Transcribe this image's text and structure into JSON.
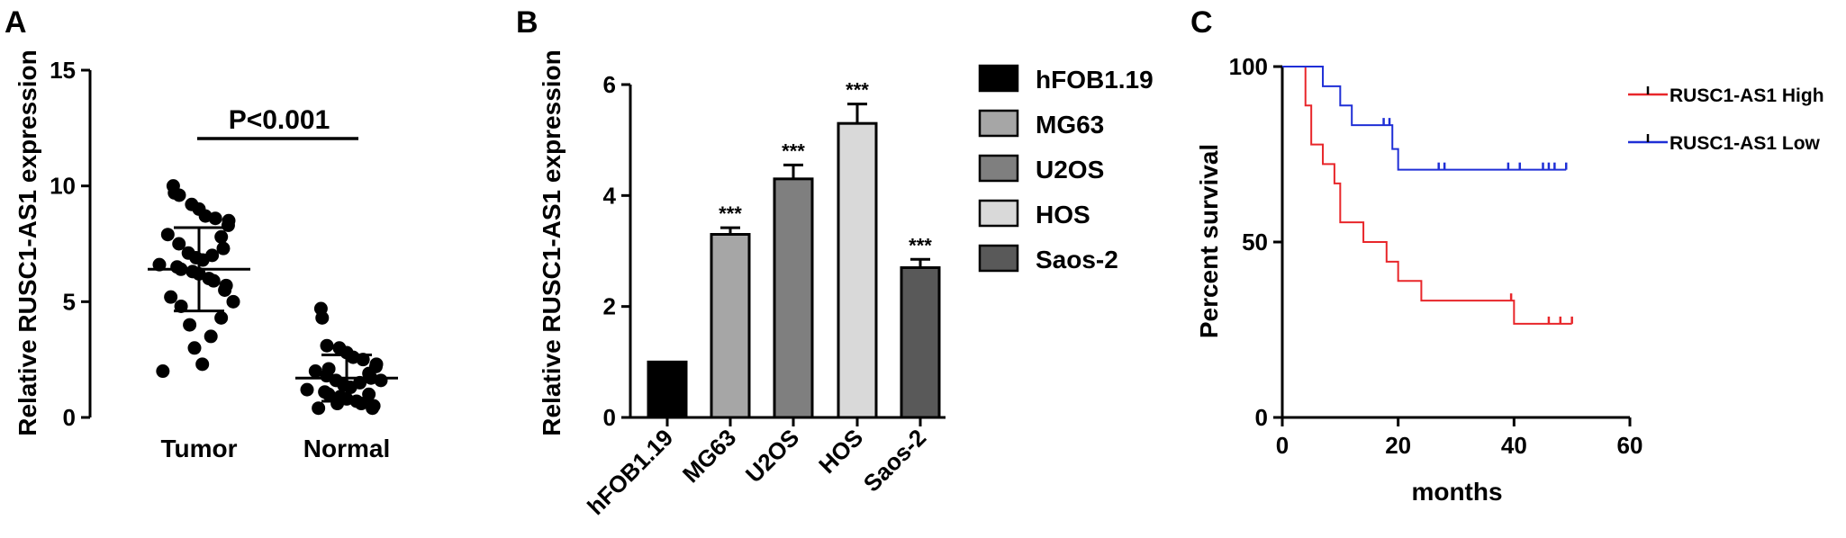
{
  "panels": {
    "a": "A",
    "b": "B",
    "c": "C"
  },
  "chart_data": [
    {
      "type": "scatter",
      "ylabel": "Relative RUSC1-AS1 expression",
      "ylim": [
        0,
        15
      ],
      "yticks": [
        "0",
        "5",
        "10",
        "15"
      ],
      "categories": [
        "Tumor",
        "Normal"
      ],
      "annotation": "P<0.001",
      "groups": [
        {
          "name": "Tumor",
          "mean": 6.4,
          "sd_low": 4.6,
          "sd_high": 8.2,
          "values": [
            10.0,
            9.7,
            9.6,
            9.2,
            9.0,
            8.7,
            8.6,
            8.5,
            8.3,
            7.9,
            7.8,
            7.5,
            7.3,
            7.1,
            7.0,
            6.9,
            6.8,
            6.6,
            6.5,
            6.4,
            6.3,
            6.2,
            6.0,
            5.9,
            5.7,
            5.5,
            5.2,
            5.0,
            4.8,
            4.3,
            4.0,
            3.5,
            3.0,
            2.3,
            2.0
          ]
        },
        {
          "name": "Normal",
          "mean": 1.7,
          "sd_low": 0.7,
          "sd_high": 2.7,
          "values": [
            4.7,
            4.3,
            3.1,
            3.0,
            2.8,
            2.6,
            2.5,
            2.3,
            2.2,
            2.0,
            1.9,
            1.8,
            1.7,
            1.6,
            1.5,
            1.4,
            1.3,
            1.2,
            1.1,
            1.0,
            0.9,
            0.8,
            0.7,
            0.6,
            0.5,
            0.4,
            0.4,
            1.6,
            2.1,
            1.0,
            0.6
          ]
        }
      ]
    },
    {
      "type": "bar",
      "ylabel": "Relative RUSC1-AS1 expression",
      "ylim": [
        0,
        6
      ],
      "yticks": [
        "0",
        "2",
        "4",
        "6"
      ],
      "categories": [
        "hFOB1.19",
        "MG63",
        "U2OS",
        "HOS",
        "Saos-2"
      ],
      "values": [
        1.0,
        3.3,
        4.3,
        5.3,
        2.7
      ],
      "errors": [
        0,
        0.12,
        0.25,
        0.35,
        0.15
      ],
      "significance": [
        "",
        "***",
        "***",
        "***",
        "***"
      ],
      "colors": [
        "#000000",
        "#a6a6a6",
        "#7f7f7f",
        "#d9d9d9",
        "#595959"
      ],
      "legend": [
        "hFOB1.19",
        "MG63",
        "U2OS",
        "HOS",
        "Saos-2"
      ]
    },
    {
      "type": "line",
      "xlabel": "months",
      "ylabel": "Percent survival",
      "xlim": [
        0,
        60
      ],
      "ylim": [
        0,
        100
      ],
      "xticks": [
        "0",
        "20",
        "40",
        "60"
      ],
      "yticks": [
        "0",
        "50",
        "100"
      ],
      "series": [
        {
          "name": "RUSC1-AS1 High",
          "color": "#e8262a",
          "steps": [
            [
              0,
              100
            ],
            [
              4,
              88.9
            ],
            [
              5,
              77.8
            ],
            [
              7,
              72.2
            ],
            [
              9,
              66.7
            ],
            [
              10,
              55.6
            ],
            [
              14,
              50
            ],
            [
              18,
              44.4
            ],
            [
              20,
              38.9
            ],
            [
              24,
              33.3
            ],
            [
              40,
              26.7
            ],
            [
              50,
              26.7
            ]
          ],
          "censored": [
            [
              39.5,
              33.3
            ],
            [
              46,
              26.7
            ],
            [
              48,
              26.7
            ],
            [
              50,
              26.7
            ]
          ]
        },
        {
          "name": "RUSC1-AS1 Low",
          "color": "#1f2fd6",
          "steps": [
            [
              0,
              100
            ],
            [
              7,
              94.4
            ],
            [
              10,
              88.9
            ],
            [
              12,
              83.3
            ],
            [
              19,
              76.5
            ],
            [
              20,
              70.6
            ],
            [
              49,
              70.6
            ]
          ],
          "censored": [
            [
              17.5,
              83.3
            ],
            [
              18.5,
              83.3
            ],
            [
              27,
              70.6
            ],
            [
              28,
              70.6
            ],
            [
              39,
              70.6
            ],
            [
              41,
              70.6
            ],
            [
              45,
              70.6
            ],
            [
              46,
              70.6
            ],
            [
              47,
              70.6
            ],
            [
              49,
              70.6
            ]
          ]
        }
      ]
    }
  ]
}
